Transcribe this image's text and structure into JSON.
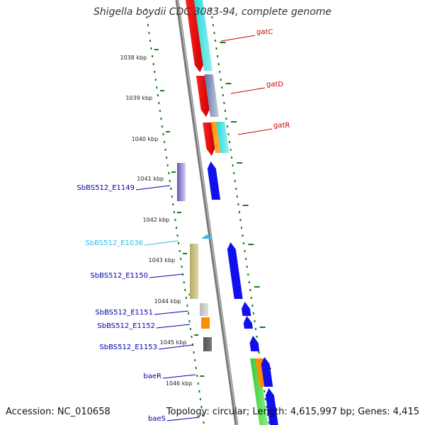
{
  "title": "Shigella boydii CDC 3083-94, complete genome",
  "footer": {
    "accession": "Accession: NC_010658",
    "summary": "Topology: circular; Length: 4,615,997 bp; Genes: 4,415"
  },
  "colors": {
    "backbone": "#8a8a8a",
    "tick": "#1a7a1a",
    "label_red": "#cc0000",
    "label_blue": "#0000aa",
    "label_cyan": "#33bbe0"
  },
  "kbp_ticks": [
    "1038 kbp",
    "1039 kbp",
    "1040 kbp",
    "1041 kbp",
    "1042 kbp",
    "1043 kbp",
    "1044 kbp",
    "1045 kbp",
    "1046 kbp"
  ],
  "genes": [
    {
      "name": "gatC",
      "color": "red"
    },
    {
      "name": "gatD",
      "color": "red"
    },
    {
      "name": "gatR",
      "color": "red"
    },
    {
      "name": "SbBS512_E1149",
      "color": "blue"
    },
    {
      "name": "SbBS512_E1036",
      "color": "cyan"
    },
    {
      "name": "SbBS512_E1150",
      "color": "blue"
    },
    {
      "name": "SbBS512_E1151",
      "color": "blue"
    },
    {
      "name": "SbBS512_E1152",
      "color": "blue"
    },
    {
      "name": "SbBS512_E1153",
      "color": "blue"
    },
    {
      "name": "baeR",
      "color": "blue"
    },
    {
      "name": "baeS",
      "color": "blue"
    }
  ]
}
